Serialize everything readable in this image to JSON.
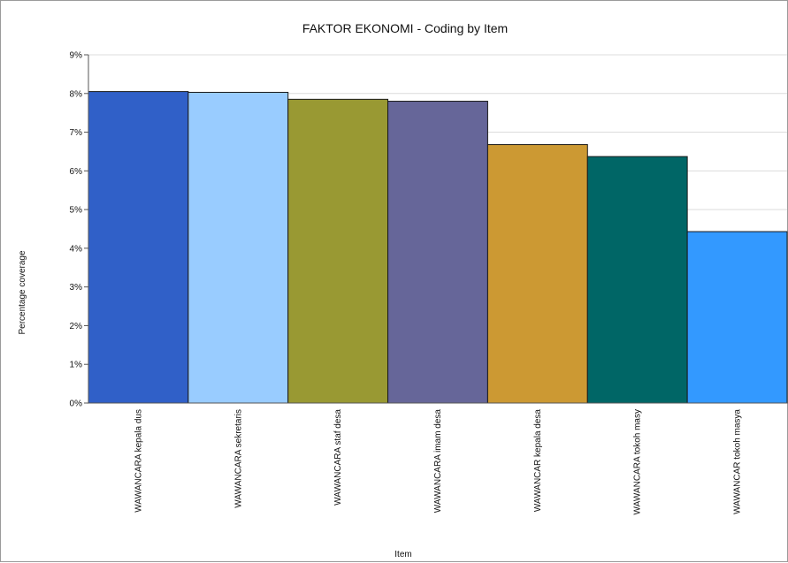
{
  "chart_data": {
    "type": "bar",
    "title": "FAKTOR EKONOMI - Coding by Item",
    "xlabel": "Item",
    "ylabel": "Percentage coverage",
    "ylim": [
      0,
      9
    ],
    "y_ticks": [
      "0%",
      "1%",
      "2%",
      "3%",
      "4%",
      "5%",
      "6%",
      "7%",
      "8%",
      "9%"
    ],
    "grid": true,
    "legend": "none",
    "categories": [
      "WAWANCARA kepala dus",
      "WAWANCARA sekretaris",
      "WAWANCARA staf desa",
      "WAWANCARA imam desa",
      "WAWANCAR kepala desa",
      "WAWANCARA tokoh masy",
      "WAWANCAR tokoh masya"
    ],
    "values": [
      8.05,
      8.03,
      7.85,
      7.8,
      6.68,
      6.37,
      4.43
    ],
    "colors": [
      "#3060c8",
      "#99ccff",
      "#999933",
      "#666699",
      "#cc9933",
      "#006666",
      "#3399ff"
    ]
  }
}
